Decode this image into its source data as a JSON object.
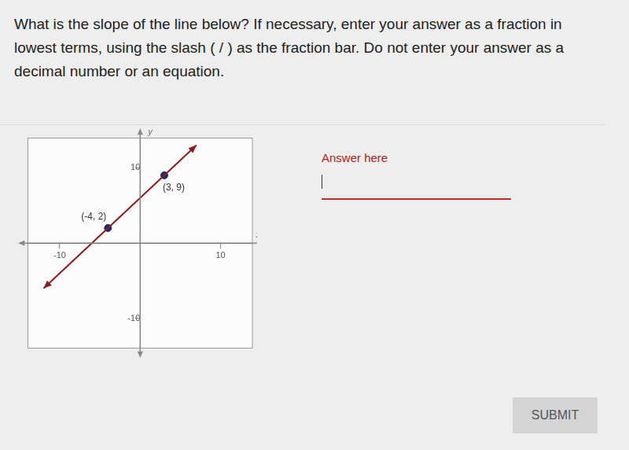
{
  "question": "What is the slope of the line below? If necessary, enter your answer as a fraction in lowest terms, using the slash ( / ) as the fraction bar. Do not enter your answer as a decimal number or an equation.",
  "answer_label": "Answer here",
  "button": "SUBMIT",
  "chart_data": {
    "type": "line",
    "xlabel": "x",
    "ylabel": "y",
    "xlim": [
      -14,
      14
    ],
    "ylim": [
      -14,
      14
    ],
    "xticks": [
      -10,
      10
    ],
    "yticks": [
      -10,
      10
    ],
    "grid": false,
    "series": [
      {
        "type": "line",
        "color": "#8b1c1c",
        "x": [
          -12,
          7
        ],
        "values": [
          -6,
          13
        ]
      },
      {
        "type": "scatter",
        "color": "#1f2a6b",
        "x": [
          -4,
          3
        ],
        "values": [
          2,
          9
        ],
        "point_labels": [
          "(-4, 2)",
          "(3, 9)"
        ]
      }
    ]
  }
}
